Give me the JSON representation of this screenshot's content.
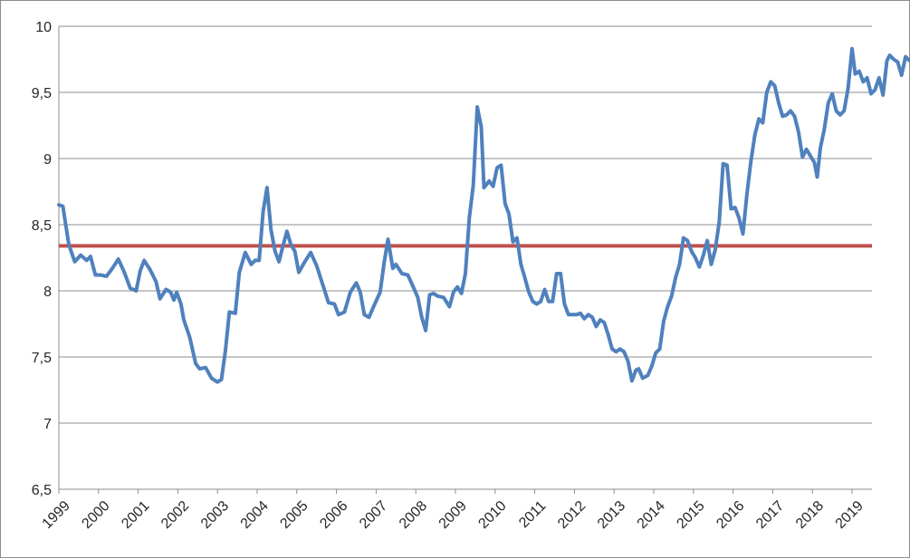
{
  "chart_data": {
    "type": "line",
    "title": "",
    "xlabel": "",
    "ylabel": "",
    "ylim": [
      6.5,
      10
    ],
    "xlim": [
      1999.0,
      2019.5
    ],
    "grid": true,
    "legend": "none",
    "y_ticks": [
      "6,5",
      "7",
      "7,5",
      "8",
      "8,5",
      "9",
      "9,5",
      "10"
    ],
    "y_tick_values": [
      6.5,
      7,
      7.5,
      8,
      8.5,
      9,
      9.5,
      10
    ],
    "x_ticks": [
      "1999",
      "2000",
      "2001",
      "2002",
      "2003",
      "2004",
      "2005",
      "2006",
      "2007",
      "2008",
      "2009",
      "2010",
      "2011",
      "2012",
      "2013",
      "2014",
      "2015",
      "2016",
      "2017",
      "2018",
      "2019"
    ],
    "x_tick_values": [
      1999,
      2000,
      2001,
      2002,
      2003,
      2004,
      2005,
      2006,
      2007,
      2008,
      2009,
      2010,
      2011,
      2012,
      2013,
      2014,
      2015,
      2016,
      2017,
      2018,
      2019
    ],
    "reference_line": {
      "y": 8.34,
      "color": "#c0504d"
    },
    "series": [
      {
        "color": "#4f81bd",
        "points": [
          [
            1999.0,
            8.65
          ],
          [
            1999.1,
            8.64
          ],
          [
            1999.25,
            8.35
          ],
          [
            1999.4,
            8.22
          ],
          [
            1999.55,
            8.27
          ],
          [
            1999.7,
            8.23
          ],
          [
            1999.8,
            8.26
          ],
          [
            1999.92,
            8.12
          ],
          [
            2000.05,
            8.12
          ],
          [
            2000.2,
            8.11
          ],
          [
            2000.35,
            8.17
          ],
          [
            2000.5,
            8.24
          ],
          [
            2000.65,
            8.14
          ],
          [
            2000.8,
            8.02
          ],
          [
            2000.95,
            8.0
          ],
          [
            2001.05,
            8.15
          ],
          [
            2001.15,
            8.23
          ],
          [
            2001.3,
            8.16
          ],
          [
            2001.45,
            8.07
          ],
          [
            2001.55,
            7.94
          ],
          [
            2001.7,
            8.01
          ],
          [
            2001.82,
            7.99
          ],
          [
            2001.9,
            7.93
          ],
          [
            2001.97,
            7.99
          ],
          [
            2002.08,
            7.9
          ],
          [
            2002.15,
            7.78
          ],
          [
            2002.3,
            7.65
          ],
          [
            2002.45,
            7.45
          ],
          [
            2002.55,
            7.41
          ],
          [
            2002.7,
            7.42
          ],
          [
            2002.85,
            7.34
          ],
          [
            2003.0,
            7.31
          ],
          [
            2003.1,
            7.33
          ],
          [
            2003.2,
            7.55
          ],
          [
            2003.3,
            7.84
          ],
          [
            2003.45,
            7.83
          ],
          [
            2003.55,
            8.14
          ],
          [
            2003.7,
            8.29
          ],
          [
            2003.85,
            8.2
          ],
          [
            2003.95,
            8.23
          ],
          [
            2004.05,
            8.23
          ],
          [
            2004.15,
            8.6
          ],
          [
            2004.25,
            8.78
          ],
          [
            2004.35,
            8.46
          ],
          [
            2004.45,
            8.3
          ],
          [
            2004.55,
            8.22
          ],
          [
            2004.65,
            8.34
          ],
          [
            2004.75,
            8.45
          ],
          [
            2004.85,
            8.35
          ],
          [
            2004.95,
            8.3
          ],
          [
            2005.05,
            8.14
          ],
          [
            2005.2,
            8.22
          ],
          [
            2005.35,
            8.29
          ],
          [
            2005.5,
            8.19
          ],
          [
            2005.65,
            8.05
          ],
          [
            2005.8,
            7.91
          ],
          [
            2005.95,
            7.9
          ],
          [
            2006.05,
            7.82
          ],
          [
            2006.2,
            7.84
          ],
          [
            2006.35,
            7.99
          ],
          [
            2006.5,
            8.06
          ],
          [
            2006.6,
            7.99
          ],
          [
            2006.7,
            7.82
          ],
          [
            2006.82,
            7.8
          ],
          [
            2006.95,
            7.89
          ],
          [
            2007.1,
            7.99
          ],
          [
            2007.2,
            8.21
          ],
          [
            2007.3,
            8.39
          ],
          [
            2007.42,
            8.17
          ],
          [
            2007.5,
            8.2
          ],
          [
            2007.65,
            8.13
          ],
          [
            2007.8,
            8.12
          ],
          [
            2007.95,
            8.02
          ],
          [
            2008.05,
            7.95
          ],
          [
            2008.15,
            7.8
          ],
          [
            2008.25,
            7.7
          ],
          [
            2008.35,
            7.97
          ],
          [
            2008.45,
            7.98
          ],
          [
            2008.55,
            7.96
          ],
          [
            2008.7,
            7.95
          ],
          [
            2008.85,
            7.88
          ],
          [
            2008.95,
            7.99
          ],
          [
            2009.05,
            8.03
          ],
          [
            2009.15,
            7.98
          ],
          [
            2009.25,
            8.13
          ],
          [
            2009.35,
            8.55
          ],
          [
            2009.45,
            8.8
          ],
          [
            2009.55,
            9.39
          ],
          [
            2009.65,
            9.24
          ],
          [
            2009.72,
            8.78
          ],
          [
            2009.85,
            8.83
          ],
          [
            2009.95,
            8.79
          ],
          [
            2010.05,
            8.93
          ],
          [
            2010.15,
            8.95
          ],
          [
            2010.25,
            8.66
          ],
          [
            2010.35,
            8.58
          ],
          [
            2010.45,
            8.37
          ],
          [
            2010.55,
            8.4
          ],
          [
            2010.65,
            8.2
          ],
          [
            2010.75,
            8.1
          ],
          [
            2010.85,
            7.99
          ],
          [
            2010.95,
            7.92
          ],
          [
            2011.05,
            7.9
          ],
          [
            2011.15,
            7.92
          ],
          [
            2011.25,
            8.01
          ],
          [
            2011.35,
            7.92
          ],
          [
            2011.45,
            7.92
          ],
          [
            2011.55,
            8.13
          ],
          [
            2011.65,
            8.13
          ],
          [
            2011.75,
            7.9
          ],
          [
            2011.85,
            7.82
          ],
          [
            2011.95,
            7.82
          ],
          [
            2012.05,
            7.82
          ],
          [
            2012.15,
            7.83
          ],
          [
            2012.25,
            7.79
          ],
          [
            2012.35,
            7.82
          ],
          [
            2012.45,
            7.8
          ],
          [
            2012.55,
            7.73
          ],
          [
            2012.65,
            7.78
          ],
          [
            2012.75,
            7.76
          ],
          [
            2012.85,
            7.67
          ],
          [
            2012.95,
            7.56
          ],
          [
            2013.05,
            7.54
          ],
          [
            2013.15,
            7.56
          ],
          [
            2013.25,
            7.54
          ],
          [
            2013.35,
            7.47
          ],
          [
            2013.45,
            7.32
          ],
          [
            2013.55,
            7.4
          ],
          [
            2013.62,
            7.41
          ],
          [
            2013.72,
            7.34
          ],
          [
            2013.85,
            7.36
          ],
          [
            2013.95,
            7.43
          ],
          [
            2014.05,
            7.53
          ],
          [
            2014.15,
            7.56
          ],
          [
            2014.25,
            7.77
          ],
          [
            2014.35,
            7.88
          ],
          [
            2014.45,
            7.96
          ],
          [
            2014.55,
            8.1
          ],
          [
            2014.65,
            8.2
          ],
          [
            2014.75,
            8.4
          ],
          [
            2014.85,
            8.38
          ],
          [
            2014.95,
            8.3
          ],
          [
            2015.05,
            8.25
          ],
          [
            2015.15,
            8.18
          ],
          [
            2015.25,
            8.27
          ],
          [
            2015.35,
            8.38
          ],
          [
            2015.45,
            8.2
          ],
          [
            2015.55,
            8.31
          ],
          [
            2015.65,
            8.52
          ],
          [
            2015.75,
            8.96
          ],
          [
            2015.85,
            8.95
          ],
          [
            2015.95,
            8.62
          ],
          [
            2016.05,
            8.63
          ],
          [
            2016.15,
            8.55
          ],
          [
            2016.25,
            8.43
          ],
          [
            2016.35,
            8.73
          ],
          [
            2016.45,
            8.98
          ],
          [
            2016.55,
            9.18
          ],
          [
            2016.65,
            9.3
          ],
          [
            2016.75,
            9.27
          ],
          [
            2016.85,
            9.5
          ],
          [
            2016.95,
            9.58
          ],
          [
            2017.05,
            9.55
          ],
          [
            2017.15,
            9.42
          ],
          [
            2017.25,
            9.32
          ],
          [
            2017.35,
            9.33
          ],
          [
            2017.45,
            9.36
          ],
          [
            2017.55,
            9.32
          ],
          [
            2017.65,
            9.2
          ],
          [
            2017.75,
            9.01
          ],
          [
            2017.85,
            9.07
          ],
          [
            2017.95,
            9.02
          ],
          [
            2018.05,
            8.97
          ],
          [
            2018.12,
            8.86
          ],
          [
            2018.2,
            9.08
          ],
          [
            2018.3,
            9.22
          ],
          [
            2018.4,
            9.42
          ],
          [
            2018.5,
            9.49
          ],
          [
            2018.6,
            9.36
          ],
          [
            2018.7,
            9.33
          ],
          [
            2018.8,
            9.36
          ],
          [
            2018.9,
            9.53
          ],
          [
            2019.0,
            9.83
          ],
          [
            2019.08,
            9.64
          ],
          [
            2019.18,
            9.66
          ],
          [
            2019.28,
            9.58
          ],
          [
            2019.38,
            9.61
          ],
          [
            2019.48,
            9.49
          ],
          [
            2019.58,
            9.52
          ],
          [
            2019.68,
            9.61
          ],
          [
            2019.78,
            9.48
          ],
          [
            2019.88,
            9.74
          ],
          [
            2019.95,
            9.78
          ],
          [
            2020.05,
            9.75
          ],
          [
            2020.15,
            9.73
          ],
          [
            2020.25,
            9.63
          ],
          [
            2020.35,
            9.77
          ],
          [
            2020.45,
            9.74
          ]
        ]
      }
    ]
  }
}
